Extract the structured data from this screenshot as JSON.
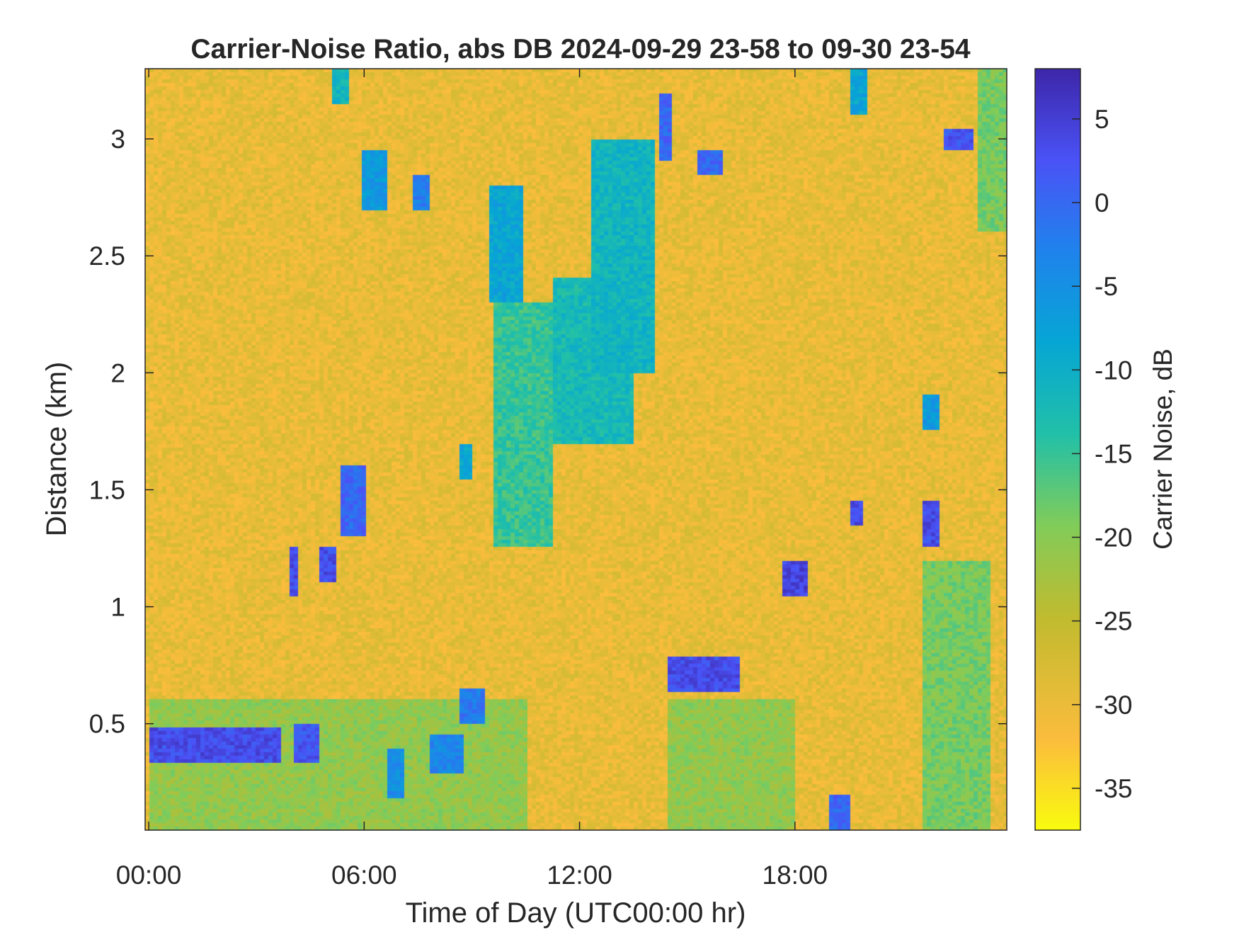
{
  "chart_data": {
    "type": "heatmap",
    "title": "Carrier-Noise Ratio, abs DB 2024-09-29 23-58 to 09-30 23-54",
    "xlabel": "Time of Day (UTC00:00 hr)",
    "ylabel": "Distance (km)",
    "colorbar_label": "Carrier Noise, dB",
    "x_ticks": [
      "00:00",
      "06:00",
      "12:00",
      "18:00"
    ],
    "x_tick_hours": [
      0,
      6,
      12,
      18
    ],
    "xlim_hours": [
      -0.1,
      23.9
    ],
    "y_ticks": [
      "0.5",
      "1",
      "1.5",
      "2",
      "2.5",
      "3"
    ],
    "y_tick_values": [
      0.5,
      1,
      1.5,
      2,
      2.5,
      3
    ],
    "ylim": [
      0.045,
      3.3
    ],
    "colorbar_ticks": [
      "5",
      "0",
      "-5",
      "-10",
      "-15",
      "-20",
      "-25",
      "-30",
      "-35"
    ],
    "colorbar_tick_values": [
      5,
      0,
      -5,
      -10,
      -15,
      -20,
      -25,
      -30,
      -35
    ],
    "clim": [
      -37.5,
      8
    ],
    "background_level_db": -30,
    "grid": false,
    "colormap": [
      "#f9fb0e",
      "#fbbc3d",
      "#c0bb2f",
      "#81cc59",
      "#21c0a8",
      "#06a6d4",
      "#1f83ec",
      "#4a52f6",
      "#3d26a8"
    ],
    "features": [
      {
        "hours": [
          0.0,
          3.7
        ],
        "km": [
          0.33,
          0.48
        ],
        "db": 3
      },
      {
        "hours": [
          4.0,
          4.8
        ],
        "km": [
          0.33,
          0.5
        ],
        "db": 2
      },
      {
        "hours": [
          0.0,
          10.5
        ],
        "km": [
          0.05,
          0.6
        ],
        "db": -22
      },
      {
        "hours": [
          6.6,
          7.1
        ],
        "km": [
          0.18,
          0.4
        ],
        "db": -5
      },
      {
        "hours": [
          7.8,
          8.8
        ],
        "km": [
          0.28,
          0.45
        ],
        "db": -4
      },
      {
        "hours": [
          8.7,
          9.4
        ],
        "km": [
          0.5,
          0.65
        ],
        "db": -2
      },
      {
        "hours": [
          3.9,
          4.2
        ],
        "km": [
          1.05,
          1.25
        ],
        "db": 3
      },
      {
        "hours": [
          4.8,
          5.2
        ],
        "km": [
          1.1,
          1.25
        ],
        "db": 3
      },
      {
        "hours": [
          5.4,
          6.1
        ],
        "km": [
          1.3,
          1.6
        ],
        "db": 0
      },
      {
        "hours": [
          5.9,
          6.6
        ],
        "km": [
          2.7,
          2.95
        ],
        "db": -7
      },
      {
        "hours": [
          7.3,
          7.8
        ],
        "km": [
          2.7,
          2.85
        ],
        "db": -3
      },
      {
        "hours": [
          5.1,
          5.6
        ],
        "km": [
          3.15,
          3.3
        ],
        "db": -12
      },
      {
        "hours": [
          9.5,
          10.4
        ],
        "km": [
          2.3,
          2.8
        ],
        "db": -9
      },
      {
        "hours": [
          9.6,
          11.3
        ],
        "km": [
          1.25,
          2.3
        ],
        "db": -16
      },
      {
        "hours": [
          11.3,
          13.5
        ],
        "km": [
          1.7,
          2.4
        ],
        "db": -13
      },
      {
        "hours": [
          12.3,
          14.1
        ],
        "km": [
          2.0,
          3.0
        ],
        "db": -12
      },
      {
        "hours": [
          8.6,
          9.0
        ],
        "km": [
          1.55,
          1.7
        ],
        "db": -9
      },
      {
        "hours": [
          14.2,
          14.6
        ],
        "km": [
          2.9,
          3.2
        ],
        "db": 0
      },
      {
        "hours": [
          15.3,
          16.0
        ],
        "km": [
          2.85,
          2.95
        ],
        "db": 0
      },
      {
        "hours": [
          14.5,
          18.0
        ],
        "km": [
          0.05,
          0.6
        ],
        "db": -22
      },
      {
        "hours": [
          14.5,
          16.5
        ],
        "km": [
          0.63,
          0.78
        ],
        "db": 3
      },
      {
        "hours": [
          17.6,
          18.3
        ],
        "km": [
          1.05,
          1.2
        ],
        "db": 4
      },
      {
        "hours": [
          19.5,
          19.9
        ],
        "km": [
          1.35,
          1.45
        ],
        "db": 4
      },
      {
        "hours": [
          19.0,
          19.5
        ],
        "km": [
          0.05,
          0.2
        ],
        "db": 0
      },
      {
        "hours": [
          21.5,
          22.0
        ],
        "km": [
          1.25,
          1.45
        ],
        "db": 3
      },
      {
        "hours": [
          21.5,
          23.5
        ],
        "km": [
          0.05,
          1.2
        ],
        "db": -20
      },
      {
        "hours": [
          22.1,
          23.0
        ],
        "km": [
          2.95,
          3.05
        ],
        "db": 2
      },
      {
        "hours": [
          19.6,
          20.0
        ],
        "km": [
          3.1,
          3.3
        ],
        "db": -9
      },
      {
        "hours": [
          21.6,
          22.0
        ],
        "km": [
          1.75,
          1.9
        ],
        "db": -7
      },
      {
        "hours": [
          23.1,
          23.9
        ],
        "km": [
          2.6,
          3.3
        ],
        "db": -20
      }
    ]
  }
}
